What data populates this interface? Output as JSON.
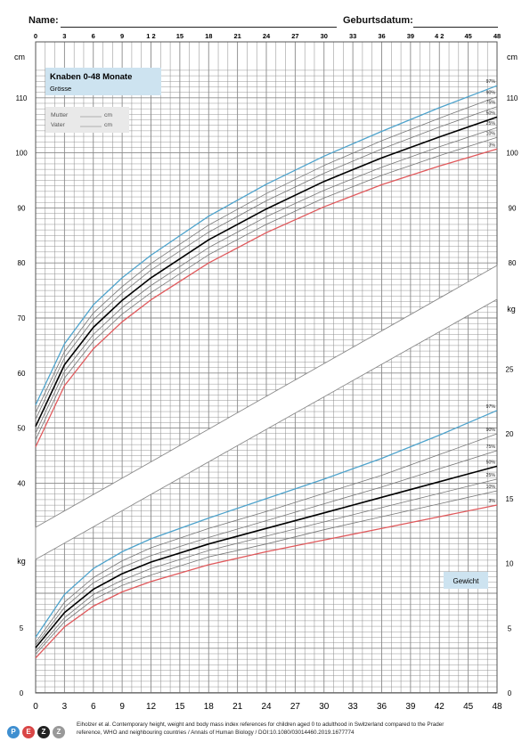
{
  "header": {
    "name_label": "Name:",
    "birthdate_label": "Geburtsdatum:"
  },
  "colors": {
    "grid": "#8a8a8a",
    "p97": "#4ea3cc",
    "p50": "#000000",
    "p3": "#e0595c",
    "mid": "#777777",
    "title_box": "#cde3f0",
    "parent_box": "#e9e9e9"
  },
  "chart_data": [
    {
      "type": "line",
      "title": "Knaben 0-48 Monate",
      "subtitle": "Grösse",
      "ylabel": "cm",
      "xlim": [
        0,
        48
      ],
      "ylim": [
        30,
        115
      ],
      "xticks": [
        "0",
        "3",
        "6",
        "9",
        "1 2",
        "15",
        "18",
        "21",
        "24",
        "27",
        "30",
        "33",
        "36",
        "39",
        "4 2",
        "45",
        "48"
      ],
      "yticks": [
        40,
        50,
        60,
        70,
        80,
        90,
        100,
        110
      ],
      "x": [
        0,
        3,
        6,
        9,
        12,
        18,
        24,
        30,
        36,
        42,
        48
      ],
      "series": [
        {
          "name": "97%",
          "values": [
            54.2,
            65.3,
            72.4,
            77.3,
            81.4,
            88.5,
            94.3,
            99.4,
            103.9,
            108.2,
            112.2
          ]
        },
        {
          "name": "90%",
          "values": [
            52.8,
            63.9,
            70.9,
            75.7,
            79.9,
            86.9,
            92.6,
            97.7,
            102.2,
            106.3,
            110.2
          ]
        },
        {
          "name": "75%",
          "values": [
            51.6,
            62.8,
            69.7,
            74.5,
            78.7,
            85.6,
            91.3,
            96.3,
            100.7,
            104.7,
            108.4
          ]
        },
        {
          "name": "50%",
          "values": [
            50.3,
            61.5,
            68.3,
            73.2,
            77.3,
            84.2,
            89.8,
            94.8,
            99.1,
            102.9,
            106.5
          ]
        },
        {
          "name": "25%",
          "values": [
            49.1,
            60.3,
            67.0,
            71.9,
            75.9,
            82.8,
            88.4,
            93.2,
            97.4,
            101.1,
            104.6
          ]
        },
        {
          "name": "10%",
          "values": [
            47.9,
            59.1,
            65.8,
            70.7,
            74.6,
            81.5,
            87.0,
            91.8,
            95.9,
            99.5,
            102.8
          ]
        },
        {
          "name": "3%",
          "values": [
            46.6,
            57.7,
            64.4,
            69.3,
            73.3,
            80.0,
            85.5,
            90.2,
            94.2,
            97.6,
            100.7
          ]
        }
      ],
      "parents": {
        "mother_label": "Mutter",
        "father_label": "Vater",
        "unit": "cm"
      }
    },
    {
      "type": "line",
      "title": "Gewicht",
      "ylabel": "kg",
      "xlim": [
        0,
        48
      ],
      "ylim": [
        0,
        27
      ],
      "xticks": [
        "0",
        "3",
        "6",
        "9",
        "12",
        "15",
        "18",
        "21",
        "24",
        "27",
        "30",
        "33",
        "36",
        "39",
        "42",
        "45",
        "48"
      ],
      "yticks": [
        0,
        5,
        10,
        15,
        20,
        25
      ],
      "x": [
        0,
        3,
        6,
        9,
        12,
        18,
        24,
        30,
        36,
        42,
        48
      ],
      "series": [
        {
          "name": "97%",
          "values": [
            4.3,
            7.6,
            9.6,
            10.9,
            11.9,
            13.5,
            15.0,
            16.5,
            18.1,
            19.9,
            21.8
          ]
        },
        {
          "name": "90%",
          "values": [
            3.9,
            7.0,
            8.9,
            10.2,
            11.2,
            12.7,
            14.0,
            15.4,
            16.8,
            18.4,
            20.0
          ]
        },
        {
          "name": "75%",
          "values": [
            3.7,
            6.6,
            8.5,
            9.7,
            10.6,
            12.0,
            13.3,
            14.6,
            15.9,
            17.3,
            18.7
          ]
        },
        {
          "name": "50%",
          "values": [
            3.5,
            6.2,
            8.0,
            9.2,
            10.1,
            11.5,
            12.7,
            13.9,
            15.1,
            16.3,
            17.5
          ]
        },
        {
          "name": "25%",
          "values": [
            3.2,
            5.8,
            7.6,
            8.7,
            9.6,
            11.0,
            12.1,
            13.2,
            14.3,
            15.4,
            16.5
          ]
        },
        {
          "name": "10%",
          "values": [
            3.0,
            5.5,
            7.2,
            8.3,
            9.1,
            10.5,
            11.5,
            12.6,
            13.6,
            14.6,
            15.6
          ]
        },
        {
          "name": "3%",
          "values": [
            2.7,
            5.1,
            6.7,
            7.8,
            8.6,
            9.9,
            10.9,
            11.8,
            12.7,
            13.6,
            14.5
          ]
        }
      ]
    }
  ],
  "footer": {
    "citation_line1": "Eiholzer et al. Contemporary height, weight and body mass index references for children aged 0 to adulthood in Switzerland compared to the Prader",
    "citation_line2": "reference, WHO and neighbouring countries / Annals of Human Biology / DOI:10.1080/03014460.2019.1677774",
    "logo_letters": [
      "P",
      "E",
      "Z",
      "Z"
    ],
    "logo_colors": [
      "#3f8fd0",
      "#d94646",
      "#222222",
      "#999999"
    ]
  }
}
